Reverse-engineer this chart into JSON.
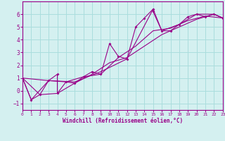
{
  "xlabel": "Windchill (Refroidissement éolien,°C)",
  "background_color": "#d4f0f0",
  "grid_color": "#aadddd",
  "line_color": "#990088",
  "xlim": [
    0,
    23
  ],
  "ylim": [
    -1.5,
    7.0
  ],
  "xticks": [
    0,
    1,
    2,
    3,
    4,
    5,
    6,
    7,
    8,
    9,
    10,
    11,
    12,
    13,
    14,
    15,
    16,
    17,
    18,
    19,
    20,
    21,
    22,
    23
  ],
  "yticks": [
    -1,
    0,
    1,
    2,
    3,
    4,
    5,
    6
  ],
  "series1": [
    [
      0,
      1.0
    ],
    [
      1,
      -0.7
    ],
    [
      2,
      -0.3
    ],
    [
      3,
      0.8
    ],
    [
      4,
      1.3
    ],
    [
      4,
      -0.2
    ],
    [
      5,
      0.7
    ],
    [
      6,
      0.6
    ],
    [
      7,
      1.1
    ],
    [
      8,
      1.5
    ],
    [
      9,
      1.3
    ],
    [
      10,
      3.7
    ],
    [
      11,
      2.7
    ],
    [
      12,
      2.5
    ],
    [
      13,
      5.0
    ],
    [
      14,
      5.7
    ],
    [
      15,
      6.4
    ],
    [
      15,
      6.2
    ],
    [
      16,
      4.7
    ],
    [
      17,
      4.7
    ],
    [
      18,
      5.2
    ],
    [
      19,
      5.8
    ],
    [
      20,
      6.0
    ],
    [
      21,
      5.8
    ],
    [
      22,
      6.0
    ],
    [
      23,
      5.7
    ]
  ],
  "series2": [
    [
      0,
      1.0
    ],
    [
      1,
      -0.7
    ],
    [
      3,
      0.8
    ],
    [
      5,
      0.7
    ],
    [
      7,
      1.1
    ],
    [
      9,
      1.3
    ],
    [
      11,
      2.6
    ],
    [
      13,
      3.5
    ],
    [
      15,
      4.7
    ],
    [
      17,
      4.9
    ],
    [
      19,
      5.5
    ],
    [
      21,
      5.85
    ],
    [
      23,
      5.7
    ]
  ],
  "series3": [
    [
      0,
      1.0
    ],
    [
      2,
      -0.3
    ],
    [
      4,
      -0.2
    ],
    [
      6,
      0.6
    ],
    [
      8,
      1.3
    ],
    [
      10,
      2.2
    ],
    [
      12,
      2.6
    ],
    [
      14,
      3.5
    ],
    [
      16,
      4.4
    ],
    [
      18,
      5.0
    ],
    [
      20,
      5.6
    ],
    [
      22,
      6.0
    ],
    [
      23,
      5.7
    ]
  ],
  "series4": [
    [
      0,
      1.0
    ],
    [
      3,
      0.8
    ],
    [
      6,
      0.7
    ],
    [
      9,
      1.5
    ],
    [
      12,
      2.5
    ],
    [
      15,
      6.4
    ],
    [
      16,
      4.7
    ],
    [
      18,
      5.2
    ],
    [
      20,
      6.0
    ],
    [
      22,
      6.0
    ],
    [
      23,
      5.7
    ]
  ]
}
